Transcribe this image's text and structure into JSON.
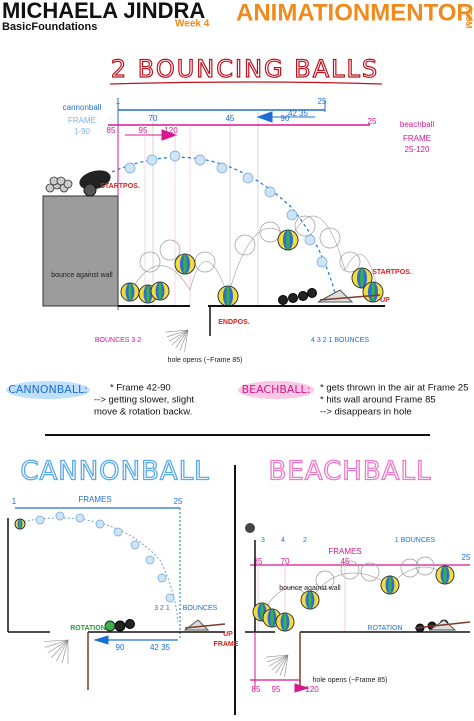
{
  "header": {
    "name": "MICHAELA JINDRA",
    "course": "BasicFoundations",
    "week": "Week 4",
    "brand": "ANIMATIONMENTOR",
    "domain": ".COM"
  },
  "title": "2 BOUNCING BALLS",
  "overview": {
    "cannonball_label": "cannonball",
    "cannonball_frame": "FRAME",
    "cannonball_range": "1-90",
    "beachball_label": "beachball",
    "beachball_frame": "FRAME",
    "beachball_range": "25-120",
    "cannonball_timeline": [
      "1",
      "25",
      "70",
      "45",
      "90",
      "42 35"
    ],
    "beachball_timeline": [
      "85",
      "95",
      "120",
      "25"
    ],
    "annotations": [
      "STARTPOS.",
      "bounce against wall",
      "ENDPOS.",
      "BOUNCES 3 2",
      "hole opens (~Frame 85)",
      "4 3 2 1 BOUNCES",
      "STARTPOS.",
      "UP"
    ]
  },
  "notes": {
    "cannonball": {
      "heading": "CANNONBALL:",
      "lines": [
        "* Frame 42-90",
        "--> getting slower, slight",
        "move & rotation backw."
      ]
    },
    "beachball": {
      "heading": "BEACHBALL:",
      "lines": [
        "* gets thrown in the air at Frame 25",
        "* hits wall around Frame 85",
        "--> disappears in hole"
      ]
    }
  },
  "cannonball_detail": {
    "title": "CANNONBALL",
    "frames_label": "FRAMES",
    "timeline": [
      "1",
      "25",
      "90",
      "42 35"
    ],
    "bounces": "3 2 1",
    "bounces_label": "BOUNCES",
    "rotation": "ROTATION",
    "up": "UP",
    "frame": "FRAME"
  },
  "beachball_detail": {
    "title": "BEACHBALL",
    "bounce_numbers": [
      "3",
      "4",
      "2",
      "1 BOUNCES"
    ],
    "timeline": [
      "85",
      "70",
      "45",
      "25",
      "85",
      "95",
      "120"
    ],
    "frames_label": "FRAMES",
    "wall": "bounce against wall",
    "rotation": "ROTATION",
    "hole": "hole opens (~Frame 85)"
  }
}
